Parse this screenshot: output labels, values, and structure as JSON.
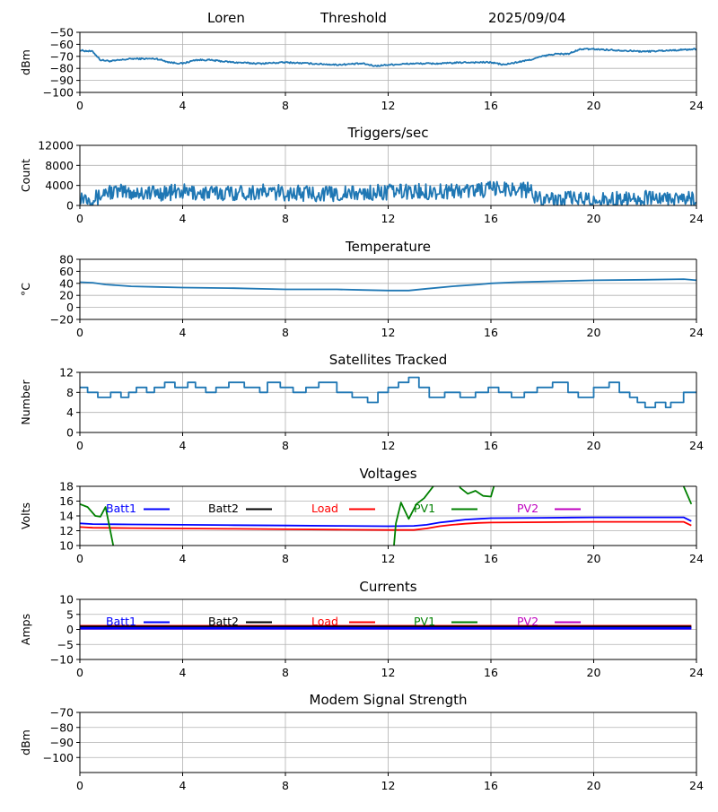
{
  "header": {
    "site": "Loren",
    "mode": "Threshold",
    "date": "2025/09/04"
  },
  "chart_data": [
    {
      "id": "threshold",
      "type": "line",
      "title": "",
      "ylabel": "dBm",
      "ylim": [
        -100,
        -50
      ],
      "yticks": [
        -50,
        -60,
        -70,
        -80,
        -90,
        -100
      ],
      "xlim": [
        0,
        24
      ],
      "xticks": [
        0,
        4,
        8,
        12,
        16,
        20,
        24
      ],
      "grid": true,
      "noise": 0.6,
      "series": [
        {
          "color": "#1f77b4",
          "x": [
            0,
            0.5,
            0.8,
            1.2,
            2,
            3,
            3.5,
            4,
            4.5,
            5,
            6,
            7,
            8,
            9,
            10,
            11,
            11.5,
            12,
            13,
            14,
            15,
            16,
            16.5,
            17,
            17.5,
            18,
            18.5,
            19,
            19.5,
            20,
            21,
            22,
            23,
            24
          ],
          "values": [
            -65,
            -66,
            -73,
            -74,
            -72,
            -72,
            -75,
            -76,
            -73,
            -73,
            -75,
            -76,
            -75,
            -76,
            -77,
            -76,
            -78,
            -77,
            -76,
            -76,
            -75,
            -75,
            -77,
            -75,
            -73,
            -70,
            -68,
            -68,
            -64,
            -64,
            -65,
            -66,
            -65,
            -64
          ]
        }
      ]
    },
    {
      "id": "triggers",
      "type": "line",
      "title": "Triggers/sec",
      "ylabel": "Count",
      "ylim": [
        0,
        12000
      ],
      "yticks": [
        0,
        4000,
        8000,
        12000
      ],
      "xlim": [
        0,
        24
      ],
      "xticks": [
        0,
        4,
        8,
        12,
        16,
        20,
        24
      ],
      "grid": true,
      "noise": 1600,
      "series": [
        {
          "color": "#1f77b4",
          "x": [
            0,
            0.7,
            1,
            2,
            3,
            4,
            5,
            6,
            7,
            8,
            9,
            10,
            11,
            12,
            13,
            14,
            15,
            16,
            16.5,
            17,
            17.5,
            17.7,
            18,
            19,
            20,
            21,
            22,
            23,
            24
          ],
          "values": [
            1800,
            1500,
            2800,
            2600,
            2500,
            2700,
            2400,
            2600,
            2700,
            2500,
            2400,
            2300,
            2400,
            2700,
            2800,
            2800,
            3000,
            3200,
            3400,
            3300,
            3000,
            1800,
            1500,
            1300,
            1200,
            1300,
            1400,
            1300,
            1100
          ]
        }
      ]
    },
    {
      "id": "temperature",
      "type": "line",
      "title": "Temperature",
      "ylabel": "°C",
      "ylim": [
        -20,
        80
      ],
      "yticks": [
        -20,
        0,
        20,
        40,
        60,
        80
      ],
      "xlim": [
        0,
        24
      ],
      "xticks": [
        0,
        4,
        8,
        12,
        16,
        20,
        24
      ],
      "grid": true,
      "noise": 0,
      "series": [
        {
          "color": "#1f77b4",
          "x": [
            0,
            0.5,
            1,
            2,
            3,
            4,
            6,
            8,
            10,
            11,
            12,
            12.8,
            13.5,
            14.5,
            15.5,
            16,
            17,
            18,
            20,
            22,
            23.5,
            24
          ],
          "values": [
            42,
            41,
            38,
            35,
            34,
            33,
            32,
            30,
            30,
            29,
            28,
            28,
            31,
            35,
            38,
            40,
            42,
            43,
            45,
            46,
            47,
            45
          ]
        }
      ]
    },
    {
      "id": "satellites",
      "type": "line",
      "step": true,
      "title": "Satellites Tracked",
      "ylabel": "Number",
      "ylim": [
        0,
        12
      ],
      "yticks": [
        0,
        4,
        8,
        12
      ],
      "xlim": [
        0,
        24
      ],
      "xticks": [
        0,
        4,
        8,
        12,
        16,
        20,
        24
      ],
      "grid": true,
      "noise": 0,
      "series": [
        {
          "color": "#1f77b4",
          "x": [
            0,
            0.3,
            0.7,
            1.2,
            1.6,
            1.9,
            2.2,
            2.6,
            2.9,
            3.3,
            3.7,
            4.2,
            4.5,
            4.9,
            5.3,
            5.8,
            6.4,
            7,
            7.3,
            7.8,
            8.3,
            8.8,
            9.3,
            10,
            10.6,
            11.2,
            11.6,
            12,
            12.4,
            12.8,
            13.2,
            13.6,
            14.2,
            14.8,
            15.4,
            15.9,
            16.3,
            16.8,
            17.3,
            17.8,
            18.4,
            19,
            19.4,
            20,
            20.6,
            21,
            21.4,
            21.7,
            22,
            22.4,
            22.8,
            23,
            23.5,
            24
          ],
          "values": [
            9,
            8,
            7,
            8,
            7,
            8,
            9,
            8,
            9,
            10,
            9,
            10,
            9,
            8,
            9,
            10,
            9,
            8,
            10,
            9,
            8,
            9,
            10,
            8,
            7,
            6,
            8,
            9,
            10,
            11,
            9,
            7,
            8,
            7,
            8,
            9,
            8,
            7,
            8,
            9,
            10,
            8,
            7,
            9,
            10,
            8,
            7,
            6,
            5,
            6,
            5,
            6,
            8,
            8
          ]
        }
      ]
    },
    {
      "id": "voltages",
      "type": "line",
      "title": "Voltages",
      "ylabel": "Volts",
      "ylim": [
        10,
        18
      ],
      "yticks": [
        10,
        12,
        14,
        16,
        18
      ],
      "xlim": [
        0,
        24
      ],
      "xticks": [
        0,
        4,
        8,
        12,
        16,
        20,
        24
      ],
      "grid": true,
      "noise": 0,
      "legend": [
        {
          "label": "Batt1",
          "color": "#0000ff"
        },
        {
          "label": "Batt2",
          "color": "#000000"
        },
        {
          "label": "Load",
          "color": "#ff0000"
        },
        {
          "label": "PV1",
          "color": "#008000"
        },
        {
          "label": "PV2",
          "color": "#bf00bf"
        }
      ],
      "series": [
        {
          "name": "Batt1",
          "color": "#0000ff",
          "x": [
            0,
            0.5,
            2,
            4,
            6,
            8,
            10,
            12,
            13,
            13.5,
            14,
            14.5,
            15,
            15.5,
            16,
            18,
            20,
            22,
            23.5,
            23.8
          ],
          "values": [
            13.0,
            12.9,
            12.85,
            12.8,
            12.75,
            12.7,
            12.65,
            12.6,
            12.65,
            12.8,
            13.1,
            13.3,
            13.5,
            13.6,
            13.7,
            13.75,
            13.8,
            13.8,
            13.8,
            13.3
          ]
        },
        {
          "name": "Load",
          "color": "#ff0000",
          "x": [
            0,
            0.5,
            2,
            4,
            6,
            8,
            10,
            12,
            13,
            13.5,
            14,
            14.5,
            15,
            15.5,
            16,
            18,
            20,
            22,
            23.5,
            23.8
          ],
          "values": [
            12.5,
            12.4,
            12.35,
            12.3,
            12.25,
            12.2,
            12.15,
            12.1,
            12.1,
            12.3,
            12.6,
            12.8,
            12.95,
            13.05,
            13.1,
            13.15,
            13.2,
            13.2,
            13.2,
            12.7
          ]
        },
        {
          "name": "PV1",
          "color": "#008000",
          "x": [
            0,
            0.3,
            0.6,
            0.8,
            1.0,
            1.3,
            1.6
          ],
          "values": [
            15.6,
            15.2,
            14.0,
            13.9,
            15.2,
            10.0,
            5
          ]
        },
        {
          "name": "PV1",
          "color": "#008000",
          "x": [
            12.1,
            12.3,
            12.5,
            12.8,
            13.1,
            13.4,
            13.8,
            14.2
          ],
          "values": [
            5,
            13.0,
            15.8,
            13.6,
            15.6,
            16.4,
            18.2,
            21
          ]
        },
        {
          "name": "PV1",
          "color": "#008000",
          "x": [
            14.6,
            14.8,
            15.1,
            15.4,
            15.7,
            16.0,
            16.2
          ],
          "values": [
            21,
            17.8,
            17.0,
            17.4,
            16.7,
            16.6,
            19
          ]
        },
        {
          "name": "PV1",
          "color": "#008000",
          "x": [
            23.3,
            23.5,
            23.8
          ],
          "values": [
            21,
            18.0,
            15.6
          ]
        }
      ]
    },
    {
      "id": "currents",
      "type": "line",
      "title": "Currents",
      "ylabel": "Amps",
      "ylim": [
        -10,
        10
      ],
      "yticks": [
        -10,
        -5,
        0,
        5,
        10
      ],
      "xlim": [
        0,
        24
      ],
      "xticks": [
        0,
        4,
        8,
        12,
        16,
        20,
        24
      ],
      "grid": true,
      "noise": 0,
      "legend": [
        {
          "label": "Batt1",
          "color": "#0000ff"
        },
        {
          "label": "Batt2",
          "color": "#000000"
        },
        {
          "label": "Load",
          "color": "#ff0000"
        },
        {
          "label": "PV1",
          "color": "#008000"
        },
        {
          "label": "PV2",
          "color": "#bf00bf"
        }
      ],
      "series": [
        {
          "name": "PV1",
          "color": "#008000",
          "x": [
            0,
            23.8
          ],
          "values": [
            0.6,
            0.6
          ]
        },
        {
          "name": "PV2",
          "color": "#bf00bf",
          "x": [
            0,
            23.8
          ],
          "values": [
            0.3,
            0.3
          ]
        },
        {
          "name": "Load",
          "color": "#ff0000",
          "x": [
            0,
            23.8
          ],
          "values": [
            1.1,
            1.1
          ]
        },
        {
          "name": "Batt2",
          "color": "#000000",
          "x": [
            0,
            23.8
          ],
          "values": [
            0.9,
            0.9
          ]
        },
        {
          "name": "Batt1",
          "color": "#0000ff",
          "x": [
            0,
            23.8
          ],
          "values": [
            0.4,
            0.4
          ]
        }
      ]
    },
    {
      "id": "modem",
      "type": "line",
      "title": "Modem Signal Strength",
      "ylabel": "dBm",
      "ylim": [
        -110,
        -70
      ],
      "yticks": [
        -70,
        -80,
        -90,
        -100
      ],
      "xlim": [
        0,
        24
      ],
      "xticks": [
        0,
        4,
        8,
        12,
        16,
        20,
        24
      ],
      "grid": true,
      "noise": 0,
      "series": []
    }
  ]
}
